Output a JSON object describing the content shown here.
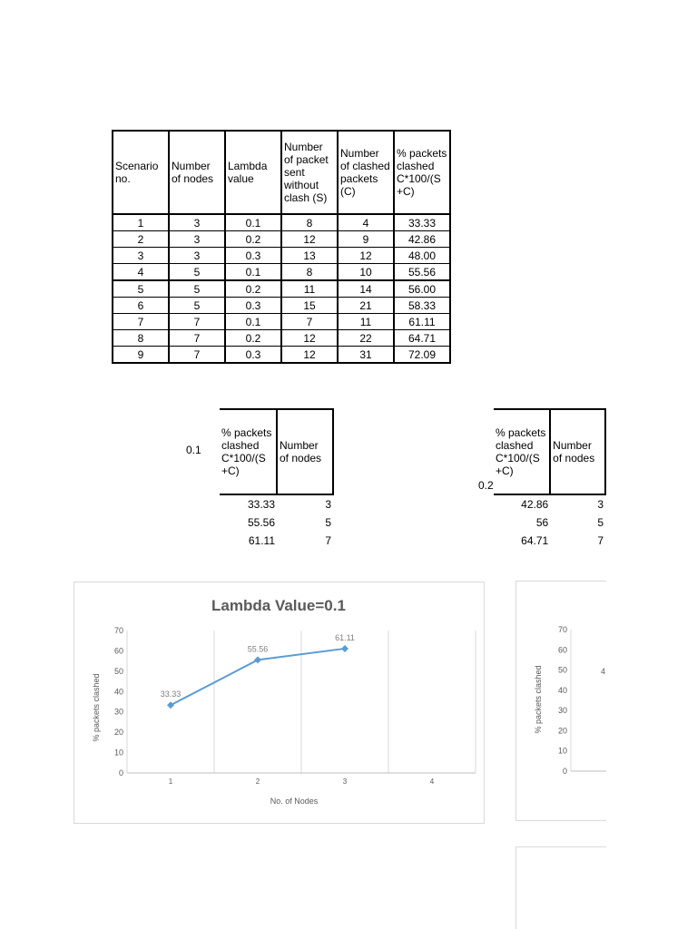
{
  "main_table": {
    "headers": [
      "Scenario no.",
      "Number of nodes",
      "Lambda value",
      "Number of packet sent without clash (S)",
      "Number of clashed packets (C)",
      "% packets clashed C*100/(S +C)"
    ],
    "rows": [
      [
        "1",
        "3",
        "0.1",
        "8",
        "4",
        "33.33"
      ],
      [
        "2",
        "3",
        "0.2",
        "12",
        "9",
        "42.86"
      ],
      [
        "3",
        "3",
        "0.3",
        "13",
        "12",
        "48.00"
      ],
      [
        "4",
        "5",
        "0.1",
        "8",
        "10",
        "55.56"
      ],
      [
        "5",
        "5",
        "0.2",
        "11",
        "14",
        "56.00"
      ],
      [
        "6",
        "5",
        "0.3",
        "15",
        "21",
        "58.33"
      ],
      [
        "7",
        "7",
        "0.1",
        "7",
        "11",
        "61.11"
      ],
      [
        "8",
        "7",
        "0.2",
        "12",
        "22",
        "64.71"
      ],
      [
        "9",
        "7",
        "0.3",
        "12",
        "31",
        "72.09"
      ]
    ]
  },
  "small_table_1": {
    "lambda": "0.1",
    "headers": [
      "% packets clashed C*100/(S +C)",
      "Number of nodes"
    ],
    "rows": [
      [
        "33.33",
        "3"
      ],
      [
        "55.56",
        "5"
      ],
      [
        "61.11",
        "7"
      ]
    ]
  },
  "small_table_2": {
    "lambda": "0.2",
    "headers": [
      "% packets clashed C*100/(S +C)",
      "Number of nodes"
    ],
    "rows": [
      [
        "42.86",
        "3"
      ],
      [
        "56",
        "5"
      ],
      [
        "64.71",
        "7"
      ]
    ]
  },
  "chart_data": [
    {
      "type": "line",
      "title": "Lambda Value=0.1",
      "xlabel": "No. of Nodes",
      "ylabel": "% packets clashed",
      "categories": [
        "1",
        "2",
        "3",
        "4"
      ],
      "series": [
        {
          "values": [
            33.33,
            55.56,
            61.11,
            null
          ]
        }
      ],
      "data_labels": [
        "33.33",
        "55.56",
        "61.11"
      ],
      "ylim": [
        0,
        70
      ],
      "yticks": [
        "0",
        "10",
        "20",
        "30",
        "40",
        "50",
        "60",
        "70"
      ],
      "grid": "vertical",
      "color": "#5b9bd5"
    },
    {
      "type": "line",
      "title": "",
      "xlabel": "",
      "ylabel": "% packets clashed",
      "ylim": [
        0,
        70
      ],
      "yticks": [
        "0",
        "10",
        "20",
        "30",
        "40",
        "50",
        "60",
        "70"
      ],
      "partial_label": "4"
    }
  ]
}
